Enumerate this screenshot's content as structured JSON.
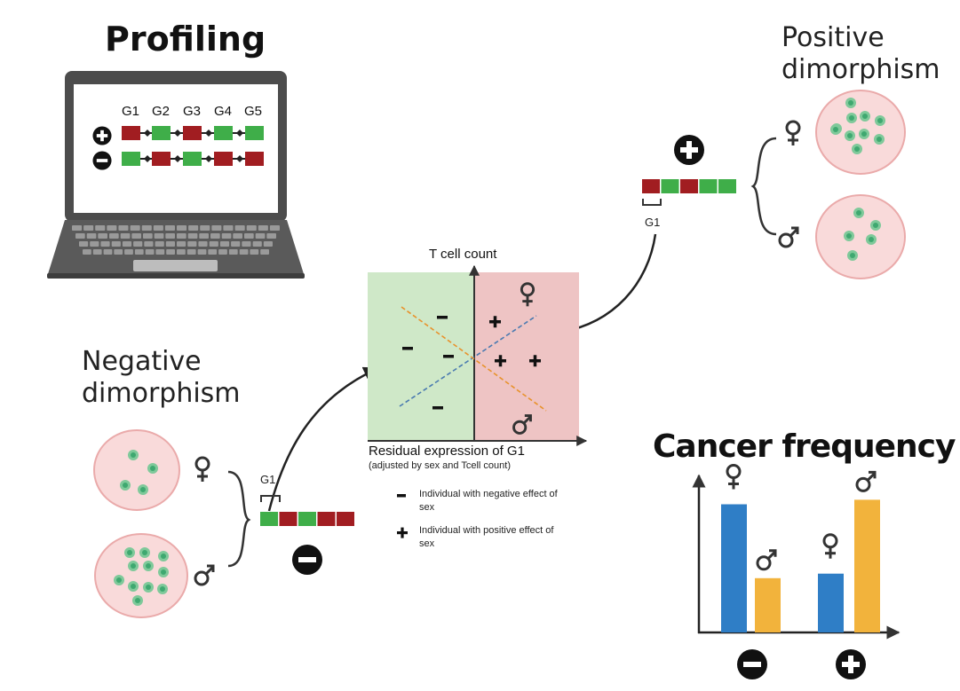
{
  "profiling": {
    "title": "Profiling",
    "genes": [
      "G1",
      "G2",
      "G3",
      "G4",
      "G5"
    ],
    "row_positive_colors": [
      "#a11d21",
      "#3fae49",
      "#a11d21",
      "#3fae49",
      "#3fae49"
    ],
    "row_negative_colors": [
      "#3fae49",
      "#a11d21",
      "#3fae49",
      "#a11d21",
      "#a11d21"
    ]
  },
  "positive": {
    "title_line1": "Positive",
    "title_line2": "dimorphism",
    "gene_label": "G1",
    "bar_colors": [
      "#a11d21",
      "#3fae49",
      "#a11d21",
      "#3fae49",
      "#3fae49"
    ]
  },
  "negative": {
    "title_line1": "Negative",
    "title_line2": "dimorphism",
    "gene_label": "G1",
    "bar_colors": [
      "#3fae49",
      "#a11d21",
      "#3fae49",
      "#a11d21",
      "#a11d21"
    ]
  },
  "plot": {
    "ylabel": "T cell count",
    "xlabel": "Residual expression of G1",
    "xlabel_note": "(adjusted by sex and Tcell count)",
    "left_fill": "#cfe8c8",
    "right_fill": "#eec4c4",
    "female_line_color": "#4a7ab0",
    "male_line_color": "#e8922c"
  },
  "legend": {
    "minus_text_line1": "Individual with negative effect of",
    "minus_text_line2": "sex",
    "plus_text_line1": "Individual with positive  effect of",
    "plus_text_line2": "sex"
  },
  "cancer": {
    "title": "Cancer frequency",
    "female_color": "#2f7ec6",
    "male_color": "#f2b33c",
    "groups": [
      {
        "effect": "negative",
        "female": 0.85,
        "male": 0.36
      },
      {
        "effect": "positive",
        "female": 0.39,
        "male": 0.88
      }
    ]
  },
  "colors": {
    "cell_fill": "#f9dada",
    "cell_stroke": "#eaaaaa",
    "dot": "#7fc99a",
    "dot_core": "#3fa870"
  }
}
